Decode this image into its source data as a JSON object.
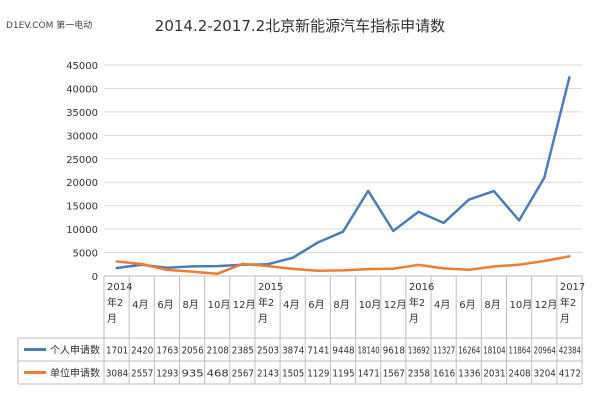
{
  "watermark": "D1EV.COM 第一电动",
  "chart_data": {
    "type": "line",
    "title": "2014.2-2017.2北京新能源汽车指标申请数",
    "categories": [
      {
        "year": "2014",
        "month": "年2",
        "unit": "月"
      },
      {
        "year": "",
        "month": "4月",
        "unit": ""
      },
      {
        "year": "",
        "month": "6月",
        "unit": ""
      },
      {
        "year": "",
        "month": "8月",
        "unit": ""
      },
      {
        "year": "",
        "month": "10月",
        "unit": ""
      },
      {
        "year": "",
        "month": "12月",
        "unit": ""
      },
      {
        "year": "2015",
        "month": "年2",
        "unit": "月"
      },
      {
        "year": "",
        "month": "4月",
        "unit": ""
      },
      {
        "year": "",
        "month": "6月",
        "unit": ""
      },
      {
        "year": "",
        "month": "8月",
        "unit": ""
      },
      {
        "year": "",
        "month": "10月",
        "unit": ""
      },
      {
        "year": "",
        "month": "12月",
        "unit": ""
      },
      {
        "year": "2016",
        "month": "年2",
        "unit": "月"
      },
      {
        "year": "",
        "month": "4月",
        "unit": ""
      },
      {
        "year": "",
        "month": "6月",
        "unit": ""
      },
      {
        "year": "",
        "month": "8月",
        "unit": ""
      },
      {
        "year": "",
        "month": "10月",
        "unit": ""
      },
      {
        "year": "",
        "month": "12月",
        "unit": ""
      },
      {
        "year": "2017",
        "month": "年2",
        "unit": "月"
      }
    ],
    "y_ticks": [
      0,
      5000,
      10000,
      15000,
      20000,
      25000,
      30000,
      35000,
      40000,
      45000
    ],
    "ylim": [
      0,
      45000
    ],
    "grid": true,
    "legend": "table-below",
    "series": [
      {
        "name": "个人申请数",
        "color": "#4a7ebb",
        "values": [
          1701,
          2420,
          1763,
          2056,
          2108,
          2385,
          2503,
          3874,
          7141,
          9448,
          18140,
          9618,
          13692,
          11327,
          16264,
          18104,
          11864,
          20964,
          42384
        ],
        "labels": [
          "1701",
          "2420",
          "1763",
          "2056",
          "2108",
          "2385",
          "2503",
          "3874",
          "7141",
          "9448",
          "18140",
          "9618",
          "13692",
          "11327",
          "16264",
          "18104",
          "11864",
          "20964",
          "42384"
        ]
      },
      {
        "name": "单位申请数",
        "color": "#ed7d31",
        "values": [
          3084,
          2557,
          1293,
          935,
          468,
          2567,
          2143,
          1505,
          1129,
          1195,
          1471,
          1567,
          2358,
          1616,
          1336,
          2031,
          2408,
          3204,
          4172
        ],
        "labels": [
          "3084",
          "2557",
          "1293",
          "935",
          "468",
          "2567",
          "2143",
          "1505",
          "1129",
          "1195",
          "1471",
          "1567",
          "2358",
          "1616",
          "1336",
          "2031",
          "2408",
          "3204",
          "4172"
        ]
      }
    ]
  }
}
